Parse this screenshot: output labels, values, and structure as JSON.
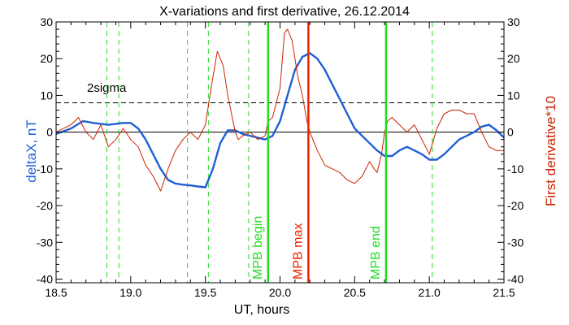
{
  "chart_data": {
    "type": "line",
    "title": "X-variations and first derivative, 26.12.2014",
    "xlabel": "UT, hours",
    "ylabel_left": "deltaX, nT",
    "ylabel_right": "First derivative*10",
    "xlim": [
      18.5,
      21.5
    ],
    "ylim": [
      -41,
      30
    ],
    "x_ticks": [
      18.5,
      19.0,
      19.5,
      20.0,
      20.5,
      21.0,
      21.5
    ],
    "y_ticks": [
      30,
      20,
      10,
      0,
      -10,
      -20,
      -30,
      -40
    ],
    "colors": {
      "deltaX": "#1f5fd6",
      "derivative": "#cc2200",
      "markers": "#22dd22",
      "mpb_max": "#ee2200",
      "axes": "#000000"
    },
    "threshold": {
      "label": "2sigma",
      "value": 8
    },
    "dashed_markers_x": [
      18.84,
      18.92,
      19.38,
      19.52,
      19.79,
      21.02
    ],
    "solid_markers": [
      {
        "x": 19.92,
        "label": "MPB begin",
        "color": "#22dd22"
      },
      {
        "x": 20.19,
        "label": "MPB max",
        "color": "#ee2200"
      },
      {
        "x": 20.71,
        "label": "MPB end",
        "color": "#22dd22"
      }
    ],
    "series": [
      {
        "key": "deltaX",
        "x": [
          18.5,
          18.6,
          18.68,
          18.75,
          18.85,
          18.95,
          19.0,
          19.05,
          19.1,
          19.15,
          19.2,
          19.25,
          19.3,
          19.35,
          19.4,
          19.45,
          19.5,
          19.55,
          19.6,
          19.65,
          19.7,
          19.75,
          19.8,
          19.85,
          19.9,
          19.95,
          20.0,
          20.05,
          20.1,
          20.15,
          20.2,
          20.25,
          20.3,
          20.35,
          20.4,
          20.45,
          20.5,
          20.55,
          20.6,
          20.65,
          20.7,
          20.75,
          20.8,
          20.85,
          20.9,
          20.95,
          21.0,
          21.05,
          21.1,
          21.15,
          21.2,
          21.25,
          21.3,
          21.35,
          21.4,
          21.45,
          21.5
        ],
        "values": [
          -0.5,
          1,
          3,
          2.5,
          2,
          2.5,
          2.5,
          1,
          -2,
          -6,
          -10,
          -13,
          -14,
          -14.3,
          -14.5,
          -14.8,
          -15,
          -10,
          -3,
          0.5,
          0.5,
          -0.5,
          -1,
          -1.5,
          -2,
          -1,
          3,
          10,
          17,
          20.5,
          21.5,
          20,
          17,
          13,
          9,
          5,
          1,
          -1,
          -3,
          -5,
          -6.5,
          -6.5,
          -5,
          -4,
          -5,
          -6,
          -7.5,
          -7.5,
          -6,
          -4,
          -2,
          -1,
          0,
          1.5,
          2,
          0.5,
          -1.5
        ]
      },
      {
        "key": "derivative",
        "x": [
          18.5,
          18.55,
          18.6,
          18.65,
          18.7,
          18.75,
          18.8,
          18.85,
          18.9,
          18.95,
          19.0,
          19.05,
          19.1,
          19.15,
          19.2,
          19.25,
          19.3,
          19.35,
          19.4,
          19.45,
          19.5,
          19.55,
          19.58,
          19.62,
          19.65,
          19.7,
          19.72,
          19.75,
          19.8,
          19.85,
          19.9,
          19.92,
          19.95,
          20.0,
          20.03,
          20.05,
          20.08,
          20.1,
          20.12,
          20.15,
          20.18,
          20.2,
          20.25,
          20.3,
          20.35,
          20.4,
          20.45,
          20.5,
          20.55,
          20.6,
          20.63,
          20.65,
          20.68,
          20.7,
          20.72,
          20.75,
          20.8,
          20.85,
          20.9,
          20.95,
          21.0,
          21.05,
          21.1,
          21.15,
          21.2,
          21.25,
          21.3,
          21.35,
          21.4,
          21.45,
          21.5
        ],
        "values": [
          0,
          1,
          2,
          4,
          0,
          -2,
          2,
          -4,
          -2,
          1,
          -2,
          -4,
          -9,
          -12,
          -16,
          -10,
          -5,
          -2,
          0,
          -2,
          2,
          15,
          22,
          18,
          10,
          0,
          -2,
          -1,
          0,
          -2,
          -1,
          3,
          4,
          12,
          27,
          28,
          25,
          20,
          15,
          10,
          3,
          0,
          -5,
          -9,
          -10,
          -11,
          -13,
          -14,
          -12,
          -8,
          -10,
          -11,
          -6,
          0,
          3,
          4,
          2,
          0,
          2,
          -2,
          -6,
          1,
          5,
          6,
          6,
          5,
          5,
          0,
          -4,
          -5,
          -5
        ]
      }
    ]
  }
}
